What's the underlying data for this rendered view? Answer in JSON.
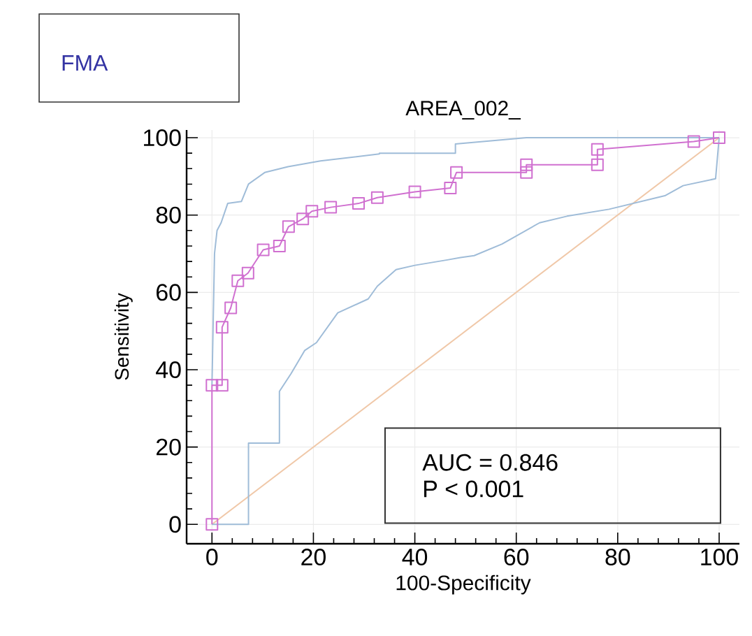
{
  "chart_data": {
    "type": "line",
    "title": "AREA_002_",
    "xlabel": "100-Specificity",
    "ylabel": "Sensitivity",
    "annotations": [
      "FMA",
      "AUC = 0.846",
      "P < 0.001"
    ],
    "xlim": [
      -5,
      104
    ],
    "ylim": [
      -5,
      102
    ],
    "xticks": [
      0,
      20,
      40,
      60,
      80,
      100
    ],
    "yticks": [
      0,
      20,
      40,
      60,
      80,
      100
    ],
    "grid": true,
    "series": [
      {
        "color": "#f0c8a8",
        "marker": "none",
        "x": [
          0,
          100
        ],
        "values": [
          0,
          100
        ]
      },
      {
        "color": "#9fbcd8",
        "marker": "none",
        "x": [
          0,
          0.5,
          1,
          1.8,
          3.1,
          5.8,
          7.2,
          10.4,
          15,
          21.4,
          33,
          33,
          48,
          48,
          62,
          100
        ],
        "values": [
          36,
          70,
          76,
          78,
          83,
          83.5,
          88,
          91,
          92.5,
          94,
          95.8,
          96,
          96,
          98.4,
          100,
          100
        ]
      },
      {
        "color": "#9fbcd8",
        "marker": "none",
        "x": [
          0,
          7.2,
          7.2,
          13.3,
          13.3,
          15.6,
          18.3,
          20.6,
          24.8,
          30.8,
          32.6,
          36.3,
          40,
          46.4,
          49,
          51.7,
          57.2,
          64.6,
          70,
          78.3,
          89.3,
          92.9,
          99.3,
          100
        ],
        "values": [
          0,
          0,
          21,
          21,
          34.4,
          39,
          45,
          47,
          54.7,
          58.3,
          61.6,
          65.9,
          67,
          68.4,
          69,
          69.5,
          72.5,
          78,
          79.7,
          81.5,
          85,
          87.6,
          89.4,
          100
        ]
      },
      {
        "color": "#d070d0",
        "marker": "square",
        "x": [
          0,
          0,
          2,
          2,
          3.7,
          5.1,
          7.1,
          10.1,
          13.3,
          15.1,
          17.9,
          19.7,
          23.4,
          28.9,
          32.6,
          40,
          47,
          48.2,
          62,
          62,
          76,
          76,
          95,
          100
        ],
        "values": [
          0,
          36,
          36,
          51,
          56,
          63,
          65,
          71,
          72,
          77,
          79,
          81,
          82,
          83,
          84.5,
          86,
          87,
          91,
          91,
          93,
          93,
          97,
          99,
          100
        ]
      }
    ]
  }
}
